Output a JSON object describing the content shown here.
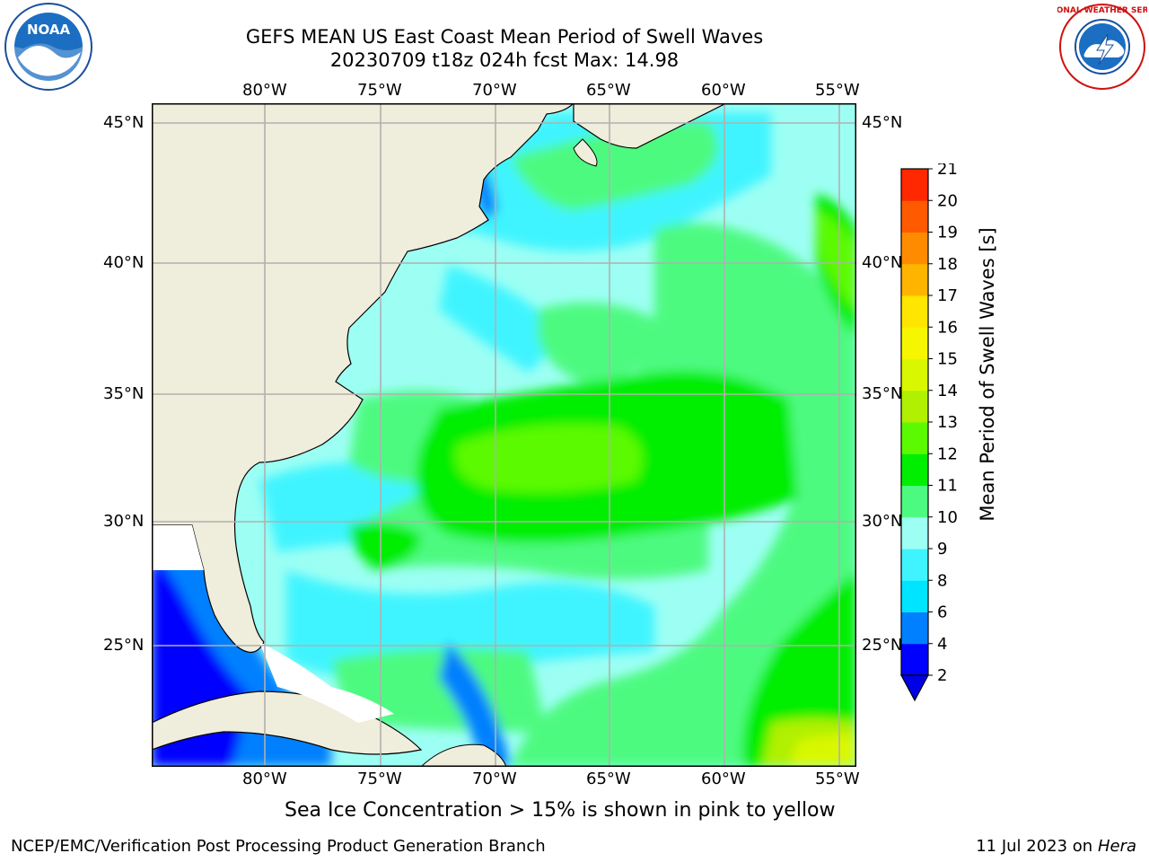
{
  "title": {
    "line1": "GEFS MEAN US East Coast Mean Period of Swell Waves",
    "line2": "20230709 t18z 024h fcst   Max: 14.98"
  },
  "map": {
    "lon_labels": [
      "80°W",
      "75°W",
      "70°W",
      "65°W",
      "60°W",
      "55°W"
    ],
    "lat_labels": [
      "45°N",
      "40°N",
      "35°N",
      "30°N",
      "25°N"
    ],
    "land_color": "#efeddb",
    "grid_color": "#b0b0b0"
  },
  "colorbar": {
    "label": "Mean Period of Swell Waves [s]",
    "ticks": [
      "2",
      "4",
      "6",
      "8",
      "9",
      "10",
      "11",
      "12",
      "13",
      "14",
      "15",
      "16",
      "17",
      "18",
      "19",
      "20",
      "21"
    ],
    "colors": [
      "#0000ff",
      "#0080ff",
      "#00e5ff",
      "#40f4ff",
      "#9dfff4",
      "#4dfa80",
      "#00ee00",
      "#5cfa00",
      "#b0f000",
      "#d9f800",
      "#f6f600",
      "#ffe600",
      "#ffb400",
      "#ff8c00",
      "#ff5a00",
      "#ff2800"
    ],
    "under_color": "#0000e6"
  },
  "logos": {
    "left_text": "NOAA",
    "right_text": "NATIONAL WEATHER SERVICE"
  },
  "note": "Sea Ice Concentration > 15% is shown in pink to yellow",
  "footer": {
    "left": "NCEP/EMC/Verification Post Processing Product Generation Branch",
    "right_date": "11 Jul 2023 on ",
    "right_host": "Hera"
  }
}
